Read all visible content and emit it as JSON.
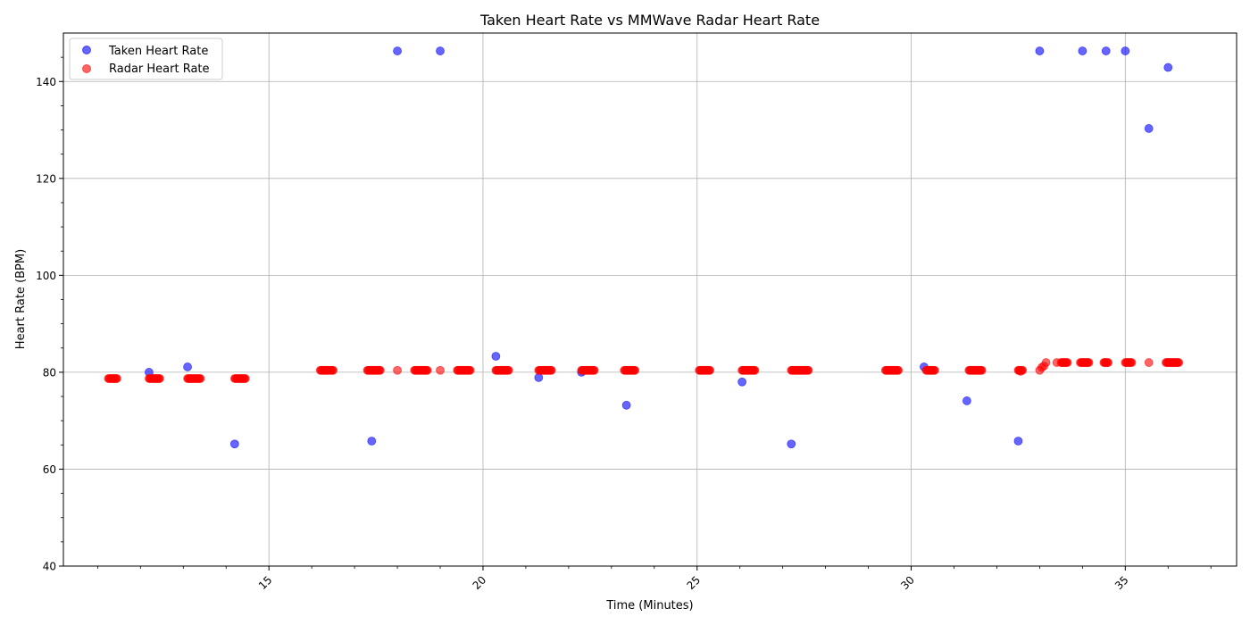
{
  "chart_data": {
    "type": "scatter",
    "title": "Taken Heart Rate vs MMWave Radar Heart Rate",
    "xlabel": "Time (Minutes)",
    "ylabel": "Heart Rate (BPM)",
    "xlim": [
      10.2,
      37.6
    ],
    "ylim": [
      40,
      150
    ],
    "x_ticks": [
      15,
      20,
      25,
      30,
      35
    ],
    "x_tick_labels": [
      "15",
      "20",
      "25",
      "30",
      "35"
    ],
    "y_ticks": [
      40,
      60,
      80,
      100,
      120,
      140
    ],
    "y_tick_labels": [
      "40",
      "60",
      "80",
      "100",
      "120",
      "140"
    ],
    "x_tick_rotation": 45,
    "grid": true,
    "legend_position": "upper-left",
    "series": [
      {
        "name": "Taken Heart Rate",
        "color": "#0000ff",
        "points": [
          [
            12.2,
            80.0
          ],
          [
            13.1,
            81.1
          ],
          [
            14.2,
            65.2
          ],
          [
            17.4,
            65.8
          ],
          [
            18.0,
            146.3
          ],
          [
            19.0,
            146.3
          ],
          [
            20.3,
            83.3
          ],
          [
            21.3,
            78.9
          ],
          [
            22.3,
            80.0
          ],
          [
            23.35,
            73.2
          ],
          [
            26.05,
            78.0
          ],
          [
            27.2,
            65.2
          ],
          [
            30.3,
            81.1
          ],
          [
            31.3,
            74.1
          ],
          [
            32.5,
            65.8
          ],
          [
            33.0,
            146.3
          ],
          [
            34.0,
            146.3
          ],
          [
            34.55,
            146.3
          ],
          [
            35.0,
            146.3
          ],
          [
            35.55,
            130.3
          ],
          [
            36.0,
            142.9
          ]
        ]
      },
      {
        "name": "Radar Heart Rate",
        "color": "#ff0000",
        "segments": [
          {
            "x0": 11.25,
            "x1": 11.45,
            "y": 78.7
          },
          {
            "x0": 12.2,
            "x1": 12.45,
            "y": 78.7
          },
          {
            "x0": 13.1,
            "x1": 13.4,
            "y": 78.7
          },
          {
            "x0": 14.2,
            "x1": 14.45,
            "y": 78.7
          },
          {
            "x0": 16.2,
            "x1": 16.5,
            "y": 80.4
          },
          {
            "x0": 17.3,
            "x1": 17.6,
            "y": 80.4
          },
          {
            "x0": 18.4,
            "x1": 18.7,
            "y": 80.4
          },
          {
            "x0": 19.4,
            "x1": 19.7,
            "y": 80.4
          },
          {
            "x0": 20.3,
            "x1": 20.6,
            "y": 80.4
          },
          {
            "x0": 21.3,
            "x1": 21.6,
            "y": 80.4
          },
          {
            "x0": 22.3,
            "x1": 22.6,
            "y": 80.4
          },
          {
            "x0": 23.3,
            "x1": 23.55,
            "y": 80.4
          },
          {
            "x0": 25.05,
            "x1": 25.3,
            "y": 80.4
          },
          {
            "x0": 26.05,
            "x1": 26.35,
            "y": 80.4
          },
          {
            "x0": 27.2,
            "x1": 27.6,
            "y": 80.4
          },
          {
            "x0": 29.4,
            "x1": 29.7,
            "y": 80.4
          },
          {
            "x0": 30.35,
            "x1": 30.55,
            "y": 80.4
          },
          {
            "x0": 31.35,
            "x1": 31.65,
            "y": 80.4
          },
          {
            "x0": 32.5,
            "x1": 32.6,
            "y": 80.4
          },
          {
            "x0": 33.5,
            "x1": 33.65,
            "y": 82.0
          },
          {
            "x0": 33.95,
            "x1": 34.15,
            "y": 82.0
          },
          {
            "x0": 34.5,
            "x1": 34.6,
            "y": 82.0
          },
          {
            "x0": 35.0,
            "x1": 35.15,
            "y": 82.0
          },
          {
            "x0": 35.95,
            "x1": 36.25,
            "y": 82.0
          }
        ],
        "points": [
          [
            18.0,
            80.4
          ],
          [
            19.0,
            80.4
          ],
          [
            32.55,
            80.2
          ],
          [
            33.0,
            80.4
          ],
          [
            33.05,
            81.0
          ],
          [
            33.1,
            81.3
          ],
          [
            33.15,
            82.0
          ],
          [
            33.4,
            82.0
          ],
          [
            35.55,
            82.0
          ]
        ]
      }
    ]
  }
}
